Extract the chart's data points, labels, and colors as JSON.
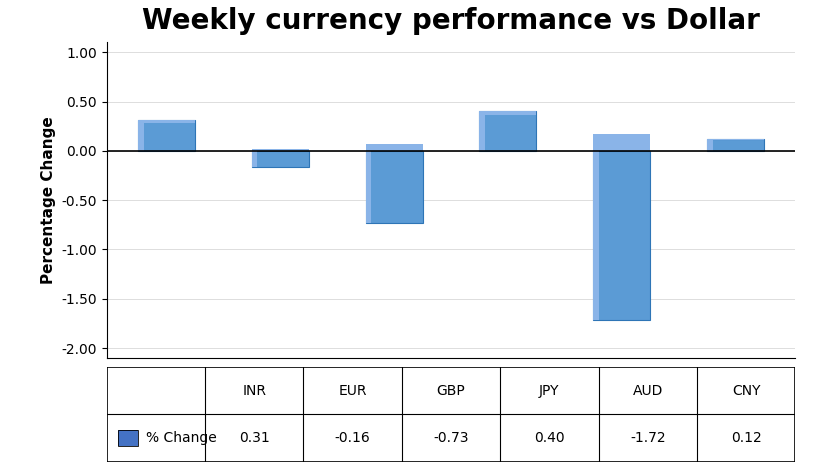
{
  "title": "Weekly currency performance vs Dollar",
  "categories": [
    "INR",
    "EUR",
    "GBP",
    "JPY",
    "AUD",
    "CNY"
  ],
  "values": [
    0.31,
    -0.16,
    -0.73,
    0.4,
    -1.72,
    0.12
  ],
  "bar_color": "#5B9BD5",
  "bar_edge_color": "#2E75B6",
  "bar_highlight": "#8ab4e8",
  "ylabel": "Percentage Change",
  "ylim": [
    -2.1,
    1.1
  ],
  "yticks": [
    -2.0,
    -1.5,
    -1.0,
    -0.5,
    0.0,
    0.5,
    1.0
  ],
  "legend_label": "% Change",
  "legend_color": "#4472c4",
  "table_values": [
    "0.31",
    "-0.16",
    "-0.73",
    "0.40",
    "-1.72",
    "0.12"
  ],
  "background_color": "#ffffff",
  "title_fontsize": 20,
  "axis_fontsize": 11,
  "tick_fontsize": 10,
  "bar_width": 0.5
}
